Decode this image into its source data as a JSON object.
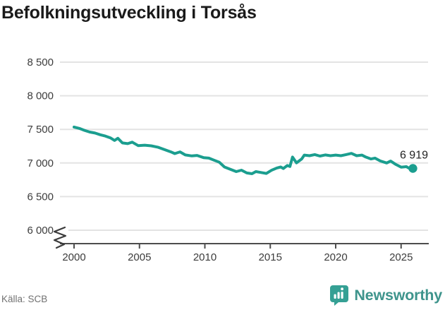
{
  "title": "Befolkningsutveckling i Torsås",
  "footer": {
    "source": "Källa: SCB",
    "brand": "Newsworthy"
  },
  "colors": {
    "line": "#1b9e8f",
    "grid": "#e3e3e3",
    "axis": "#4d4d4d",
    "break_mark": "#3b3b3b",
    "annotation": "#222222",
    "logo": "#35a094"
  },
  "chart_data": {
    "type": "line",
    "title": "Befolkningsutveckling i Torsås",
    "xlabel": "",
    "ylabel": "",
    "x_range_shown": [
      1999,
      2027
    ],
    "ylim_shown": [
      6000,
      8500
    ],
    "axis_break_at_bottom": true,
    "grid": "horizontal",
    "legend": "none",
    "y_ticks": [
      {
        "label": "8 500",
        "value": 8500
      },
      {
        "label": "8 000",
        "value": 8000
      },
      {
        "label": "7 500",
        "value": 7500
      },
      {
        "label": "7 000",
        "value": 7000
      },
      {
        "label": "6 500",
        "value": 6500
      },
      {
        "label": "6 000",
        "value": 6000
      }
    ],
    "x_ticks": [
      {
        "label": "2000",
        "year": 2000
      },
      {
        "label": "2005",
        "year": 2005
      },
      {
        "label": "2010",
        "year": 2010
      },
      {
        "label": "2015",
        "year": 2015
      },
      {
        "label": "2020",
        "year": 2020
      },
      {
        "label": "2025",
        "year": 2025
      }
    ],
    "series": [
      {
        "name": "Befolkning i Torsås",
        "points": [
          [
            2000.0,
            7535
          ],
          [
            2000.4,
            7515
          ],
          [
            2000.8,
            7485
          ],
          [
            2001.2,
            7460
          ],
          [
            2001.6,
            7445
          ],
          [
            2002.0,
            7420
          ],
          [
            2002.4,
            7400
          ],
          [
            2002.8,
            7372
          ],
          [
            2003.1,
            7335
          ],
          [
            2003.35,
            7368
          ],
          [
            2003.7,
            7298
          ],
          [
            2004.1,
            7288
          ],
          [
            2004.45,
            7310
          ],
          [
            2004.9,
            7258
          ],
          [
            2005.4,
            7265
          ],
          [
            2005.9,
            7255
          ],
          [
            2006.4,
            7235
          ],
          [
            2006.9,
            7200
          ],
          [
            2007.4,
            7165
          ],
          [
            2007.7,
            7140
          ],
          [
            2008.1,
            7165
          ],
          [
            2008.5,
            7120
          ],
          [
            2009.0,
            7105
          ],
          [
            2009.4,
            7112
          ],
          [
            2009.9,
            7080
          ],
          [
            2010.3,
            7072
          ],
          [
            2010.7,
            7042
          ],
          [
            2011.1,
            7012
          ],
          [
            2011.5,
            6940
          ],
          [
            2012.0,
            6902
          ],
          [
            2012.4,
            6872
          ],
          [
            2012.8,
            6893
          ],
          [
            2013.2,
            6852
          ],
          [
            2013.6,
            6840
          ],
          [
            2013.9,
            6872
          ],
          [
            2014.3,
            6858
          ],
          [
            2014.7,
            6845
          ],
          [
            2015.1,
            6892
          ],
          [
            2015.5,
            6925
          ],
          [
            2015.8,
            6940
          ],
          [
            2016.0,
            6918
          ],
          [
            2016.3,
            6962
          ],
          [
            2016.5,
            6948
          ],
          [
            2016.7,
            7088
          ],
          [
            2017.0,
            7002
          ],
          [
            2017.4,
            7060
          ],
          [
            2017.6,
            7118
          ],
          [
            2018.0,
            7108
          ],
          [
            2018.4,
            7125
          ],
          [
            2018.8,
            7103
          ],
          [
            2019.2,
            7120
          ],
          [
            2019.6,
            7108
          ],
          [
            2020.0,
            7118
          ],
          [
            2020.4,
            7108
          ],
          [
            2020.8,
            7125
          ],
          [
            2021.2,
            7143
          ],
          [
            2021.6,
            7108
          ],
          [
            2022.0,
            7118
          ],
          [
            2022.3,
            7088
          ],
          [
            2022.7,
            7060
          ],
          [
            2023.0,
            7072
          ],
          [
            2023.4,
            7030
          ],
          [
            2023.9,
            7000
          ],
          [
            2024.2,
            7028
          ],
          [
            2024.6,
            6978
          ],
          [
            2025.0,
            6938
          ],
          [
            2025.4,
            6945
          ],
          [
            2025.7,
            6912
          ],
          [
            2025.9,
            6919
          ]
        ]
      }
    ],
    "end_annotation": {
      "label": "6 919",
      "year": 2025.9,
      "value": 6919
    }
  }
}
